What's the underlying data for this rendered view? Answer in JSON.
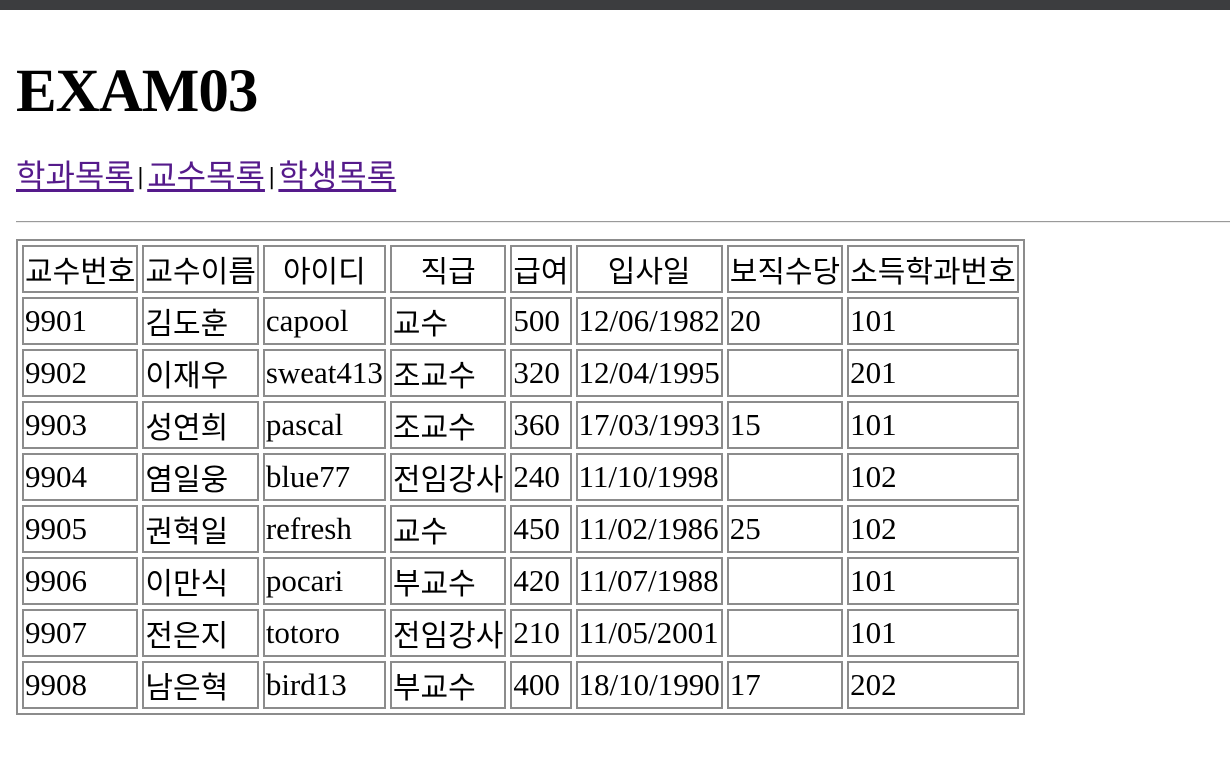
{
  "page": {
    "title": "EXAM03"
  },
  "nav": {
    "items": [
      {
        "label": "학과목록"
      },
      {
        "label": "교수목록"
      },
      {
        "label": "학생목록"
      }
    ],
    "separator": "|",
    "link_color": "#551a8b"
  },
  "table": {
    "headers": [
      "교수번호",
      "교수이름",
      "아이디",
      "직급",
      "급여",
      "입사일",
      "보직수당",
      "소득학과번호"
    ],
    "rows": [
      [
        "9901",
        "김도훈",
        "capool",
        "교수",
        "500",
        "12/06/1982",
        "20",
        "101"
      ],
      [
        "9902",
        "이재우",
        "sweat413",
        "조교수",
        "320",
        "12/04/1995",
        "",
        "201"
      ],
      [
        "9903",
        "성연희",
        "pascal",
        "조교수",
        "360",
        "17/03/1993",
        "15",
        "101"
      ],
      [
        "9904",
        "염일웅",
        "blue77",
        "전임강사",
        "240",
        "11/10/1998",
        "",
        "102"
      ],
      [
        "9905",
        "권혁일",
        "refresh",
        "교수",
        "450",
        "11/02/1986",
        "25",
        "102"
      ],
      [
        "9906",
        "이만식",
        "pocari",
        "부교수",
        "420",
        "11/07/1988",
        "",
        "101"
      ],
      [
        "9907",
        "전은지",
        "totoro",
        "전임강사",
        "210",
        "11/05/2001",
        "",
        "101"
      ],
      [
        "9908",
        "남은혁",
        "bird13",
        "부교수",
        "400",
        "18/10/1990",
        "17",
        "202"
      ]
    ]
  }
}
